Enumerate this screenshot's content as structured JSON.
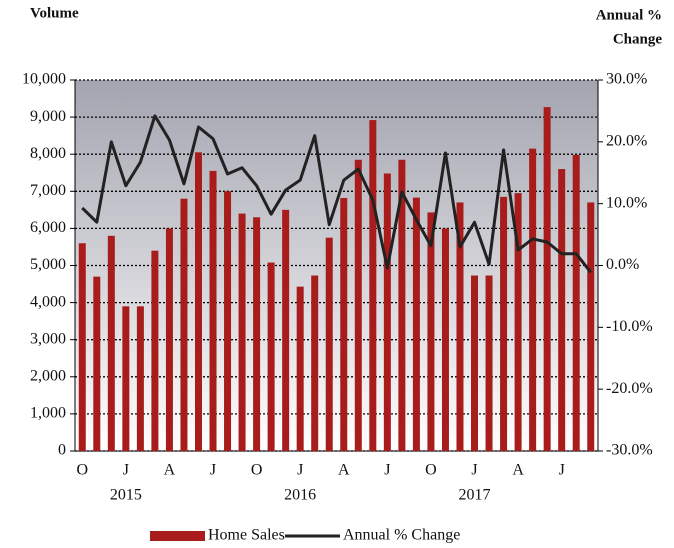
{
  "chart_data": {
    "type": "bar_line",
    "y_label": "Volume",
    "y2_label": [
      "Annual %",
      "Change"
    ],
    "categories": [
      "O",
      null,
      null,
      "J",
      null,
      null,
      "A",
      null,
      null,
      "J",
      null,
      null,
      "O",
      null,
      null,
      "J",
      null,
      null,
      "A",
      null,
      null,
      "J",
      null,
      null,
      "O",
      null,
      null,
      "J",
      null,
      null,
      "A",
      null,
      null,
      "J",
      null,
      null
    ],
    "category_years": [
      null,
      null,
      null,
      "2015",
      null,
      null,
      null,
      null,
      null,
      null,
      null,
      null,
      null,
      null,
      null,
      "2016",
      null,
      null,
      null,
      null,
      null,
      null,
      null,
      null,
      null,
      null,
      null,
      "2017",
      null,
      null,
      null,
      null,
      null,
      null,
      null,
      null
    ],
    "series": [
      {
        "name": "Home Sales",
        "color": "#a81c1c",
        "axis": "y",
        "values": [
          5600,
          4700,
          5800,
          3900,
          3900,
          5400,
          6000,
          6800,
          8050,
          7550,
          7000,
          6400,
          6300,
          5080,
          6500,
          4430,
          4730,
          5750,
          6820,
          7850,
          8920,
          7480,
          7850,
          6830,
          6430,
          6000,
          6700,
          4730,
          4730,
          6850,
          6950,
          8150,
          9270,
          7600,
          7980,
          6700
        ]
      },
      {
        "name": "Annual % Change",
        "color": "#222222",
        "axis": "y2",
        "values": [
          9.3,
          7.0,
          20.0,
          12.9,
          16.7,
          24.2,
          20.3,
          13.2,
          22.4,
          20.5,
          14.8,
          15.8,
          12.9,
          8.3,
          12.2,
          13.8,
          21.0,
          6.6,
          13.8,
          15.6,
          10.6,
          -0.4,
          11.9,
          7.4,
          3.2,
          18.2,
          3.0,
          7.0,
          0.2,
          18.7,
          2.5,
          4.3,
          3.8,
          1.9,
          1.9,
          -1.1
        ]
      }
    ],
    "ylim": [
      0,
      10000
    ],
    "yticks": [
      0,
      {
        "value": 1000,
        "label": "1,000"
      },
      {
        "value": 2000,
        "label": "2,000"
      },
      {
        "value": 3000,
        "label": "3,000"
      },
      {
        "value": 4000,
        "label": "4,000"
      },
      {
        "value": 5000,
        "label": "5,000"
      },
      {
        "value": 6000,
        "label": "6,000"
      },
      {
        "value": 7000,
        "label": "7,000"
      },
      {
        "value": 8000,
        "label": "8,000"
      },
      {
        "value": 9000,
        "label": "9,000"
      },
      {
        "value": 10000,
        "label": "10,000"
      }
    ],
    "y2lim": [
      -30,
      30
    ],
    "y2ticks": [
      {
        "value": -30,
        "label": "-30.0%"
      },
      {
        "value": -20,
        "label": "-20.0%"
      },
      {
        "value": -10,
        "label": "-10.0%"
      },
      {
        "value": 0,
        "label": "0.0%"
      },
      {
        "value": 10,
        "label": "10.0%"
      },
      {
        "value": 20,
        "label": "20.0%"
      },
      {
        "value": 30,
        "label": "30.0%"
      }
    ],
    "grid": true
  }
}
